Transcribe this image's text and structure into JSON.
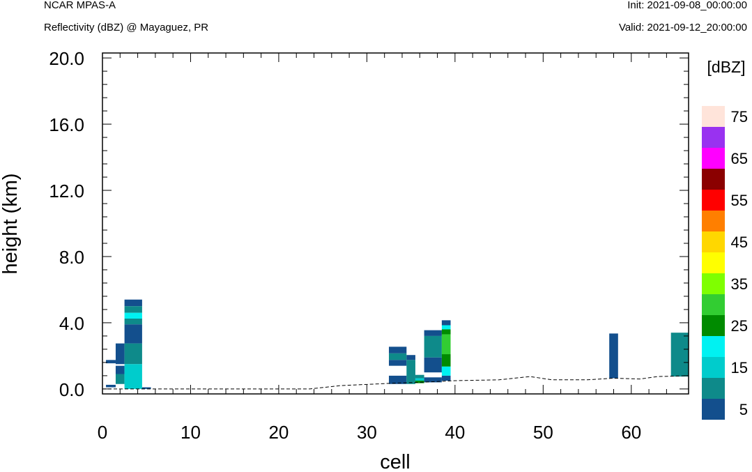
{
  "header": {
    "model": "NCAR MPAS-A",
    "subtitle": "Reflectivity (dBZ) @ Mayaguez, PR",
    "init": "Init: 2021-09-08_00:00:00",
    "valid": "Valid: 2021-09-12_20:00:00"
  },
  "chart_data": {
    "type": "heatmap",
    "xlabel": "cell",
    "ylabel": "height (km)",
    "xlim": [
      0,
      66.5
    ],
    "ylim": [
      -0.3,
      20.3
    ],
    "xticks": [
      0,
      10,
      20,
      30,
      40,
      50,
      60
    ],
    "yticks": [
      0.0,
      4.0,
      8.0,
      12.0,
      16.0,
      20.0
    ],
    "ytick_labels": [
      "0.0",
      "4.0",
      "8.0",
      "12.0",
      "16.0",
      "20.0"
    ],
    "colorbar": {
      "unit": "[dBZ]",
      "levels": [
        5,
        10,
        15,
        20,
        25,
        30,
        35,
        40,
        45,
        50,
        55,
        60,
        65,
        70,
        75
      ],
      "labels": [
        "5",
        "15",
        "25",
        "35",
        "45",
        "55",
        "65",
        "75"
      ],
      "colors": [
        "#134f8d",
        "#0e8a8a",
        "#00cccc",
        "#00f2f2",
        "#008b00",
        "#32cd32",
        "#7fff00",
        "#ffff00",
        "#ffd700",
        "#ff7f00",
        "#ff0000",
        "#8b0000",
        "#ff00ff",
        "#9932f0",
        "#ffe4da"
      ]
    },
    "cells": [
      {
        "x0": 0.4,
        "x1": 1.5,
        "y0": 1.55,
        "y1": 1.75,
        "dbz": 5
      },
      {
        "x0": 0.4,
        "x1": 1.5,
        "y0": 0.1,
        "y1": 0.25,
        "dbz": 5
      },
      {
        "x0": 1.5,
        "x1": 2.5,
        "y0": 2.75,
        "y1": 1.5,
        "dbz": 5
      },
      {
        "x0": 1.5,
        "x1": 2.5,
        "y0": 0.9,
        "y1": 1.4,
        "dbz": 5
      },
      {
        "x0": 1.5,
        "x1": 2.5,
        "y0": 0.3,
        "y1": 0.9,
        "dbz": 10
      },
      {
        "x0": 2.5,
        "x1": 4.5,
        "y0": 5.0,
        "y1": 5.4,
        "dbz": 5
      },
      {
        "x0": 2.5,
        "x1": 4.5,
        "y0": 4.6,
        "y1": 5.0,
        "dbz": 10
      },
      {
        "x0": 2.5,
        "x1": 4.5,
        "y0": 4.25,
        "y1": 4.6,
        "dbz": 20
      },
      {
        "x0": 2.5,
        "x1": 4.5,
        "y0": 3.9,
        "y1": 4.25,
        "dbz": 10
      },
      {
        "x0": 2.5,
        "x1": 4.5,
        "y0": 2.75,
        "y1": 3.9,
        "dbz": 5
      },
      {
        "x0": 2.5,
        "x1": 4.5,
        "y0": 1.5,
        "y1": 2.75,
        "dbz": 10
      },
      {
        "x0": 2.5,
        "x1": 4.5,
        "y0": 0.0,
        "y1": 1.5,
        "dbz": 15
      },
      {
        "x0": 4.5,
        "x1": 5.5,
        "y0": 0.0,
        "y1": 0.1,
        "dbz": 5
      },
      {
        "x0": 32.5,
        "x1": 34.5,
        "y0": 2.15,
        "y1": 2.55,
        "dbz": 5
      },
      {
        "x0": 32.5,
        "x1": 34.5,
        "y0": 1.75,
        "y1": 2.15,
        "dbz": 10
      },
      {
        "x0": 32.5,
        "x1": 34.5,
        "y0": 1.4,
        "y1": 1.75,
        "dbz": 5
      },
      {
        "x0": 32.5,
        "x1": 34.5,
        "y0": 0.3,
        "y1": 0.8,
        "dbz": 5
      },
      {
        "x0": 34.5,
        "x1": 35.5,
        "y0": 1.75,
        "y1": 2.05,
        "dbz": 5
      },
      {
        "x0": 34.5,
        "x1": 35.5,
        "y0": 0.3,
        "y1": 1.75,
        "dbz": 10
      },
      {
        "x0": 35.5,
        "x1": 36.5,
        "y0": 0.65,
        "y1": 0.85,
        "dbz": 10
      },
      {
        "x0": 35.5,
        "x1": 36.5,
        "y0": 0.5,
        "y1": 0.65,
        "dbz": 15
      },
      {
        "x0": 35.5,
        "x1": 36.5,
        "y0": 0.35,
        "y1": 0.5,
        "dbz": 25
      },
      {
        "x0": 36.5,
        "x1": 38.5,
        "y0": 3.2,
        "y1": 3.55,
        "dbz": 5
      },
      {
        "x0": 36.5,
        "x1": 38.5,
        "y0": 1.9,
        "y1": 3.2,
        "dbz": 10
      },
      {
        "x0": 36.5,
        "x1": 38.5,
        "y0": 1.0,
        "y1": 1.9,
        "dbz": 5
      },
      {
        "x0": 36.5,
        "x1": 38.5,
        "y0": 0.4,
        "y1": 0.7,
        "dbz": 5
      },
      {
        "x0": 38.5,
        "x1": 39.5,
        "y0": 3.85,
        "y1": 4.15,
        "dbz": 5
      },
      {
        "x0": 38.5,
        "x1": 39.5,
        "y0": 3.6,
        "y1": 3.85,
        "dbz": 20
      },
      {
        "x0": 38.5,
        "x1": 39.5,
        "y0": 3.3,
        "y1": 3.6,
        "dbz": 25
      },
      {
        "x0": 38.5,
        "x1": 39.5,
        "y0": 2.1,
        "y1": 3.3,
        "dbz": 30
      },
      {
        "x0": 38.5,
        "x1": 39.5,
        "y0": 1.35,
        "y1": 2.1,
        "dbz": 25
      },
      {
        "x0": 38.5,
        "x1": 39.5,
        "y0": 0.8,
        "y1": 1.35,
        "dbz": 20
      },
      {
        "x0": 38.5,
        "x1": 39.5,
        "y0": 0.5,
        "y1": 0.8,
        "dbz": 5
      },
      {
        "x0": 57.5,
        "x1": 58.5,
        "y0": 0.65,
        "y1": 3.35,
        "dbz": 5
      },
      {
        "x0": 64.5,
        "x1": 66.5,
        "y0": 0.75,
        "y1": 3.4,
        "dbz": 10
      }
    ],
    "terrain": [
      [
        0,
        0.0
      ],
      [
        23.5,
        0.0
      ],
      [
        27,
        0.2
      ],
      [
        31,
        0.3
      ],
      [
        33,
        0.35
      ],
      [
        36,
        0.4
      ],
      [
        40,
        0.5
      ],
      [
        45,
        0.55
      ],
      [
        48.5,
        0.75
      ],
      [
        51,
        0.55
      ],
      [
        55,
        0.55
      ],
      [
        58,
        0.65
      ],
      [
        61,
        0.6
      ],
      [
        63,
        0.75
      ],
      [
        66.5,
        0.8
      ]
    ]
  }
}
